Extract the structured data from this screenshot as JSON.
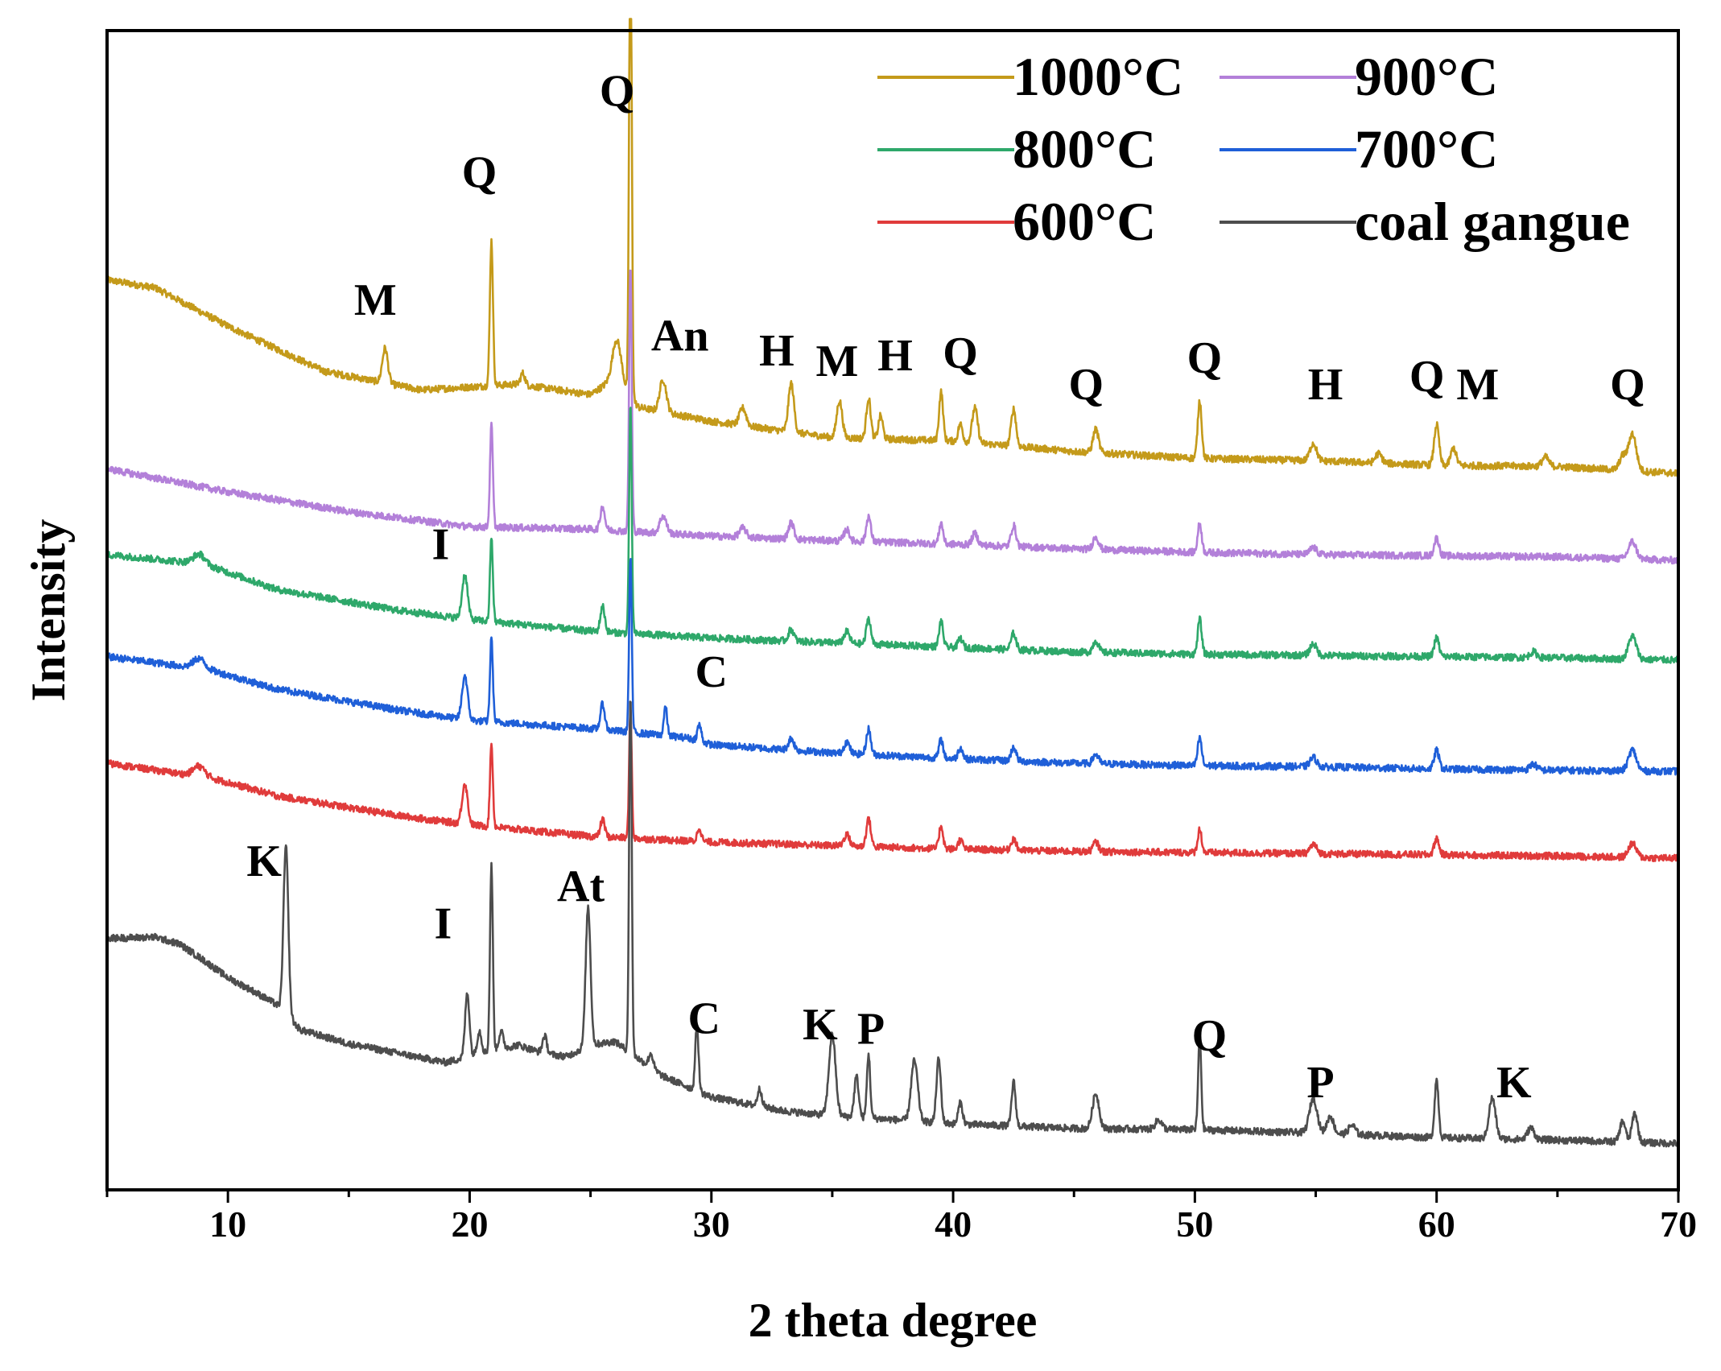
{
  "chart_data": {
    "type": "line",
    "title": "",
    "xlabel": "2 theta degree",
    "ylabel": "Intensity",
    "xlim": [
      5,
      70
    ],
    "ylim": [
      0,
      1000
    ],
    "x_ticks": [
      10,
      20,
      30,
      40,
      50,
      60,
      70
    ],
    "x_tick_labels": [
      "10",
      "20",
      "30",
      "40",
      "50",
      "60",
      "70"
    ],
    "y_ticks_shown": false,
    "legend_position": "top-right",
    "series": [
      {
        "name": "1000°C",
        "color": "#c49a1a",
        "baseline": [
          [
            5,
            785
          ],
          [
            7,
            778
          ],
          [
            10,
            745
          ],
          [
            14,
            706
          ],
          [
            18,
            690
          ],
          [
            22,
            695
          ],
          [
            25,
            686
          ],
          [
            26,
            700
          ],
          [
            27,
            675
          ],
          [
            30,
            663
          ],
          [
            35,
            649
          ],
          [
            40,
            646
          ],
          [
            45,
            637
          ],
          [
            50,
            631
          ],
          [
            55,
            629
          ],
          [
            60,
            625
          ],
          [
            65,
            624
          ],
          [
            70,
            618
          ]
        ],
        "peaks": [
          [
            16.5,
            30,
            0.25
          ],
          [
            20.9,
            125,
            0.14
          ],
          [
            22.2,
            10,
            0.2
          ],
          [
            26.65,
            425,
            0.12
          ],
          [
            26.1,
            35,
            0.4
          ],
          [
            28.0,
            28,
            0.3
          ],
          [
            31.3,
            15,
            0.3
          ],
          [
            33.3,
            42,
            0.25
          ],
          [
            35.3,
            32,
            0.25
          ],
          [
            36.5,
            35,
            0.2
          ],
          [
            37.0,
            20,
            0.2
          ],
          [
            39.5,
            42,
            0.18
          ],
          [
            40.3,
            15,
            0.2
          ],
          [
            40.9,
            30,
            0.25
          ],
          [
            42.5,
            32,
            0.22
          ],
          [
            45.9,
            20,
            0.25
          ],
          [
            50.2,
            50,
            0.18
          ],
          [
            54.9,
            15,
            0.3
          ],
          [
            57.6,
            8,
            0.3
          ],
          [
            60.0,
            35,
            0.22
          ],
          [
            60.7,
            15,
            0.25
          ],
          [
            64.5,
            8,
            0.3
          ],
          [
            68.1,
            32,
            0.35
          ],
          [
            67.7,
            12,
            0.3
          ]
        ]
      },
      {
        "name": "900°C",
        "color": "#b380d9",
        "baseline": [
          [
            5,
            622
          ],
          [
            10,
            602
          ],
          [
            15,
            585
          ],
          [
            20,
            572
          ],
          [
            25,
            570
          ],
          [
            30,
            564
          ],
          [
            35,
            560
          ],
          [
            40,
            557
          ],
          [
            45,
            553
          ],
          [
            50,
            550
          ],
          [
            55,
            548
          ],
          [
            60,
            547
          ],
          [
            65,
            546
          ],
          [
            70,
            543
          ]
        ],
        "peaks": [
          [
            20.9,
            88,
            0.13
          ],
          [
            25.5,
            20,
            0.2
          ],
          [
            26.65,
            230,
            0.12
          ],
          [
            28.0,
            15,
            0.3
          ],
          [
            31.3,
            8,
            0.3
          ],
          [
            33.3,
            14,
            0.25
          ],
          [
            35.6,
            10,
            0.25
          ],
          [
            36.5,
            22,
            0.2
          ],
          [
            39.5,
            18,
            0.18
          ],
          [
            40.9,
            10,
            0.25
          ],
          [
            42.5,
            18,
            0.22
          ],
          [
            45.9,
            11,
            0.25
          ],
          [
            50.2,
            25,
            0.18
          ],
          [
            54.9,
            6,
            0.3
          ],
          [
            60.0,
            15,
            0.22
          ],
          [
            68.1,
            15,
            0.35
          ]
        ]
      },
      {
        "name": "800°C",
        "color": "#2ea86a",
        "baseline": [
          [
            5,
            548
          ],
          [
            8,
            542
          ],
          [
            9,
            540
          ],
          [
            12,
            518
          ],
          [
            17,
            500
          ],
          [
            20,
            492
          ],
          [
            25,
            482
          ],
          [
            30,
            476
          ],
          [
            35,
            472
          ],
          [
            40,
            468
          ],
          [
            45,
            464
          ],
          [
            50,
            462
          ],
          [
            55,
            461
          ],
          [
            60,
            460
          ],
          [
            65,
            459
          ],
          [
            70,
            457
          ]
        ],
        "peaks": [
          [
            8.8,
            8,
            0.5
          ],
          [
            19.8,
            38,
            0.25
          ],
          [
            20.9,
            72,
            0.13
          ],
          [
            25.5,
            22,
            0.2
          ],
          [
            26.65,
            195,
            0.12
          ],
          [
            33.3,
            10,
            0.25
          ],
          [
            35.6,
            10,
            0.25
          ],
          [
            36.5,
            22,
            0.2
          ],
          [
            39.5,
            22,
            0.18
          ],
          [
            40.3,
            8,
            0.2
          ],
          [
            42.5,
            14,
            0.22
          ],
          [
            45.9,
            10,
            0.25
          ],
          [
            50.2,
            30,
            0.18
          ],
          [
            54.9,
            10,
            0.3
          ],
          [
            60.0,
            16,
            0.22
          ],
          [
            64.0,
            5,
            0.3
          ],
          [
            68.1,
            20,
            0.35
          ]
        ]
      },
      {
        "name": "700°C",
        "color": "#1f5fd8",
        "baseline": [
          [
            5,
            460
          ],
          [
            8,
            452
          ],
          [
            9,
            450
          ],
          [
            12,
            432
          ],
          [
            17,
            414
          ],
          [
            20,
            405
          ],
          [
            25,
            398
          ],
          [
            29,
            390
          ],
          [
            30,
            384
          ],
          [
            35,
            377
          ],
          [
            40,
            372
          ],
          [
            45,
            368
          ],
          [
            50,
            366
          ],
          [
            55,
            365
          ],
          [
            60,
            363
          ],
          [
            65,
            362
          ],
          [
            70,
            361
          ]
        ],
        "peaks": [
          [
            8.8,
            8,
            0.5
          ],
          [
            19.8,
            38,
            0.25
          ],
          [
            20.9,
            72,
            0.13
          ],
          [
            25.5,
            22,
            0.2
          ],
          [
            26.65,
            150,
            0.12
          ],
          [
            28.1,
            25,
            0.15
          ],
          [
            29.5,
            14,
            0.18
          ],
          [
            33.3,
            10,
            0.25
          ],
          [
            35.6,
            10,
            0.25
          ],
          [
            36.5,
            22,
            0.2
          ],
          [
            39.5,
            16,
            0.18
          ],
          [
            40.3,
            10,
            0.2
          ],
          [
            42.5,
            12,
            0.22
          ],
          [
            45.9,
            8,
            0.25
          ],
          [
            50.2,
            24,
            0.18
          ],
          [
            54.9,
            8,
            0.3
          ],
          [
            60.0,
            16,
            0.22
          ],
          [
            64.0,
            5,
            0.3
          ],
          [
            68.1,
            18,
            0.35
          ]
        ]
      },
      {
        "name": "600°C",
        "color": "#e03b3b",
        "baseline": [
          [
            5,
            368
          ],
          [
            8,
            359
          ],
          [
            9,
            357
          ],
          [
            12,
            340
          ],
          [
            17,
            323
          ],
          [
            20,
            315
          ],
          [
            25,
            305
          ],
          [
            30,
            300
          ],
          [
            35,
            297
          ],
          [
            40,
            294
          ],
          [
            45,
            292
          ],
          [
            50,
            291
          ],
          [
            55,
            290
          ],
          [
            60,
            289
          ],
          [
            65,
            288
          ],
          [
            70,
            286
          ]
        ],
        "peaks": [
          [
            8.8,
            8,
            0.5
          ],
          [
            19.8,
            35,
            0.25
          ],
          [
            20.9,
            72,
            0.13
          ],
          [
            25.5,
            15,
            0.2
          ],
          [
            26.65,
            110,
            0.12
          ],
          [
            29.5,
            12,
            0.18
          ],
          [
            35.6,
            10,
            0.25
          ],
          [
            36.5,
            24,
            0.2
          ],
          [
            39.5,
            20,
            0.18
          ],
          [
            40.3,
            8,
            0.2
          ],
          [
            42.5,
            10,
            0.22
          ],
          [
            45.9,
            8,
            0.25
          ],
          [
            50.2,
            20,
            0.18
          ],
          [
            54.9,
            8,
            0.3
          ],
          [
            60.0,
            14,
            0.22
          ],
          [
            68.1,
            12,
            0.35
          ]
        ]
      },
      {
        "name": "coal gangue",
        "color": "#4d4d4d",
        "baseline": [
          [
            5,
            217
          ],
          [
            7,
            218
          ],
          [
            8,
            212
          ],
          [
            9,
            198
          ],
          [
            10,
            183
          ],
          [
            11,
            172
          ],
          [
            12,
            160
          ],
          [
            13,
            138
          ],
          [
            15,
            126
          ],
          [
            17,
            118
          ],
          [
            19,
            110
          ],
          [
            20,
            115
          ],
          [
            22,
            125
          ],
          [
            23,
            118
          ],
          [
            24,
            115
          ],
          [
            25,
            125
          ],
          [
            26,
            128
          ],
          [
            28,
            98
          ],
          [
            30,
            80
          ],
          [
            33,
            68
          ],
          [
            35,
            64
          ],
          [
            38,
            60
          ],
          [
            40,
            57
          ],
          [
            45,
            53
          ],
          [
            50,
            52
          ],
          [
            55,
            49
          ],
          [
            60,
            45
          ],
          [
            65,
            43
          ],
          [
            70,
            40
          ]
        ],
        "peaks": [
          [
            12.4,
            145,
            0.22
          ],
          [
            19.9,
            55,
            0.2
          ],
          [
            20.4,
            20,
            0.2
          ],
          [
            20.9,
            160,
            0.13
          ],
          [
            21.3,
            15,
            0.2
          ],
          [
            23.1,
            15,
            0.2
          ],
          [
            24.9,
            120,
            0.22
          ],
          [
            26.65,
            310,
            0.12
          ],
          [
            27.5,
            12,
            0.2
          ],
          [
            29.4,
            55,
            0.15
          ],
          [
            32.0,
            15,
            0.2
          ],
          [
            35.0,
            70,
            0.3
          ],
          [
            36.0,
            35,
            0.2
          ],
          [
            36.5,
            55,
            0.15
          ],
          [
            38.4,
            52,
            0.3
          ],
          [
            39.4,
            55,
            0.2
          ],
          [
            40.3,
            18,
            0.2
          ],
          [
            42.5,
            38,
            0.18
          ],
          [
            45.9,
            30,
            0.3
          ],
          [
            48.5,
            8,
            0.3
          ],
          [
            50.2,
            80,
            0.14
          ],
          [
            54.9,
            30,
            0.35
          ],
          [
            55.6,
            15,
            0.3
          ],
          [
            56.5,
            8,
            0.3
          ],
          [
            60.0,
            50,
            0.18
          ],
          [
            62.3,
            35,
            0.3
          ],
          [
            63.9,
            10,
            0.3
          ],
          [
            67.7,
            18,
            0.25
          ],
          [
            68.2,
            25,
            0.25
          ]
        ]
      }
    ],
    "peak_labels": [
      {
        "text": "Q",
        "x": 26.1,
        "y": 935
      },
      {
        "text": "Q",
        "x": 20.4,
        "y": 865
      },
      {
        "text": "M",
        "x": 16.1,
        "y": 755
      },
      {
        "text": "An",
        "x": 28.7,
        "y": 724
      },
      {
        "text": "H",
        "x": 32.7,
        "y": 711
      },
      {
        "text": "M",
        "x": 35.2,
        "y": 702
      },
      {
        "text": "H",
        "x": 37.6,
        "y": 707
      },
      {
        "text": "Q",
        "x": 40.3,
        "y": 709
      },
      {
        "text": "Q",
        "x": 45.5,
        "y": 682
      },
      {
        "text": "Q",
        "x": 50.4,
        "y": 705
      },
      {
        "text": "H",
        "x": 55.4,
        "y": 682
      },
      {
        "text": "Q",
        "x": 59.6,
        "y": 689
      },
      {
        "text": "M",
        "x": 61.7,
        "y": 682
      },
      {
        "text": "Q",
        "x": 67.9,
        "y": 682
      },
      {
        "text": "I",
        "x": 18.8,
        "y": 544
      },
      {
        "text": "C",
        "x": 30.0,
        "y": 434
      },
      {
        "text": "K",
        "x": 11.5,
        "y": 271
      },
      {
        "text": "I",
        "x": 18.9,
        "y": 217
      },
      {
        "text": "At",
        "x": 24.6,
        "y": 249
      },
      {
        "text": "C",
        "x": 29.7,
        "y": 135
      },
      {
        "text": "K",
        "x": 34.5,
        "y": 130
      },
      {
        "text": "P",
        "x": 36.6,
        "y": 126
      },
      {
        "text": "Q",
        "x": 50.6,
        "y": 120
      },
      {
        "text": "P",
        "x": 55.2,
        "y": 80
      },
      {
        "text": "K",
        "x": 63.2,
        "y": 80
      }
    ]
  }
}
